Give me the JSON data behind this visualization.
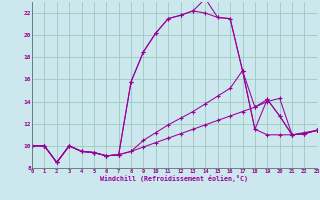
{
  "xlabel": "Windchill (Refroidissement éolien,°C)",
  "bg_color": "#cce8ee",
  "grid_color": "#99ccbb",
  "line_color": "#990099",
  "xlim": [
    0,
    23
  ],
  "ylim": [
    8,
    23
  ],
  "yticks": [
    8,
    10,
    12,
    14,
    16,
    18,
    20,
    22
  ],
  "xticks": [
    0,
    1,
    2,
    3,
    4,
    5,
    6,
    7,
    8,
    9,
    10,
    11,
    12,
    13,
    14,
    15,
    16,
    17,
    18,
    19,
    20,
    21,
    22,
    23
  ],
  "series": [
    [
      10.0,
      10.0,
      8.5,
      10.0,
      9.5,
      9.4,
      9.1,
      9.2,
      9.5,
      9.9,
      10.3,
      10.7,
      11.1,
      11.5,
      11.9,
      12.3,
      12.7,
      13.1,
      13.5,
      14.0,
      14.3,
      11.0,
      11.1,
      11.4
    ],
    [
      10.0,
      10.0,
      8.5,
      10.0,
      9.5,
      9.4,
      9.1,
      9.2,
      9.5,
      10.5,
      11.2,
      11.9,
      12.5,
      13.1,
      13.8,
      14.5,
      15.2,
      16.8,
      13.5,
      14.2,
      12.7,
      11.0,
      11.1,
      11.4
    ],
    [
      10.0,
      10.0,
      8.5,
      10.0,
      9.5,
      9.4,
      9.1,
      9.2,
      15.8,
      18.5,
      20.2,
      21.5,
      21.8,
      22.2,
      22.0,
      21.6,
      21.5,
      16.8,
      11.5,
      11.0,
      11.0,
      11.0,
      11.1,
      11.4
    ],
    [
      10.0,
      10.0,
      8.5,
      10.0,
      9.5,
      9.4,
      9.1,
      9.2,
      15.8,
      18.5,
      20.2,
      21.5,
      21.8,
      22.2,
      23.3,
      21.6,
      21.5,
      16.8,
      11.5,
      14.2,
      12.7,
      11.0,
      11.2,
      11.4
    ]
  ]
}
